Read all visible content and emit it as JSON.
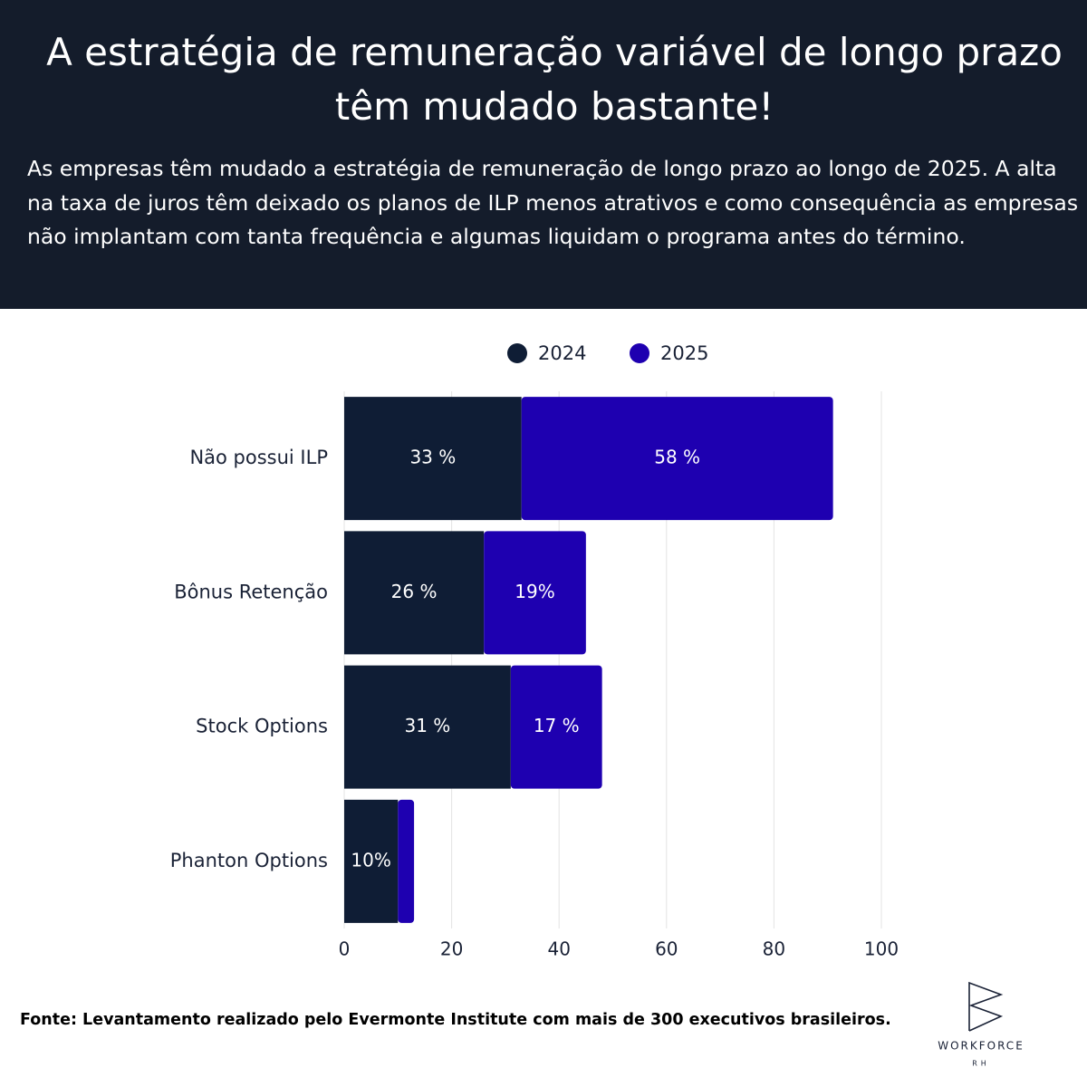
{
  "chart_data": {
    "type": "stacked-bar-horizontal",
    "title": "A estratégia de remuneração variável de longo prazo têm mudado bastante!",
    "subtitle": "As empresas têm mudado a estratégia de remuneração de longo prazo ao longo de 2025. A alta na taxa de juros têm deixado os planos de ILP menos atrativos e como consequência as empresas não implantam com tanta frequência e algumas liquidam o programa antes do término.",
    "categories": [
      "Não possui ILP",
      "Bônus Retenção",
      "Stock Options",
      "Phanton Options"
    ],
    "series": [
      {
        "name": "2024",
        "color": "#0f1d35",
        "values": [
          33,
          26,
          31,
          10
        ],
        "value_labels": [
          "33 %",
          "26 %",
          "31 %",
          "10%"
        ]
      },
      {
        "name": "2025",
        "color": "#1e00b0",
        "values": [
          58,
          19,
          17,
          3
        ],
        "value_labels": [
          "58 %",
          "19%",
          "17 %",
          null
        ]
      }
    ],
    "xlim": [
      0,
      100
    ],
    "xticks": [
      0,
      20,
      40,
      60,
      80,
      100
    ],
    "grid": true,
    "source": "Fonte: Levantamento realizado pelo Evermonte Institute com mais de 300 executivos brasileiros."
  },
  "logo": {
    "name": "WORKFORCE",
    "sub": "RH"
  }
}
